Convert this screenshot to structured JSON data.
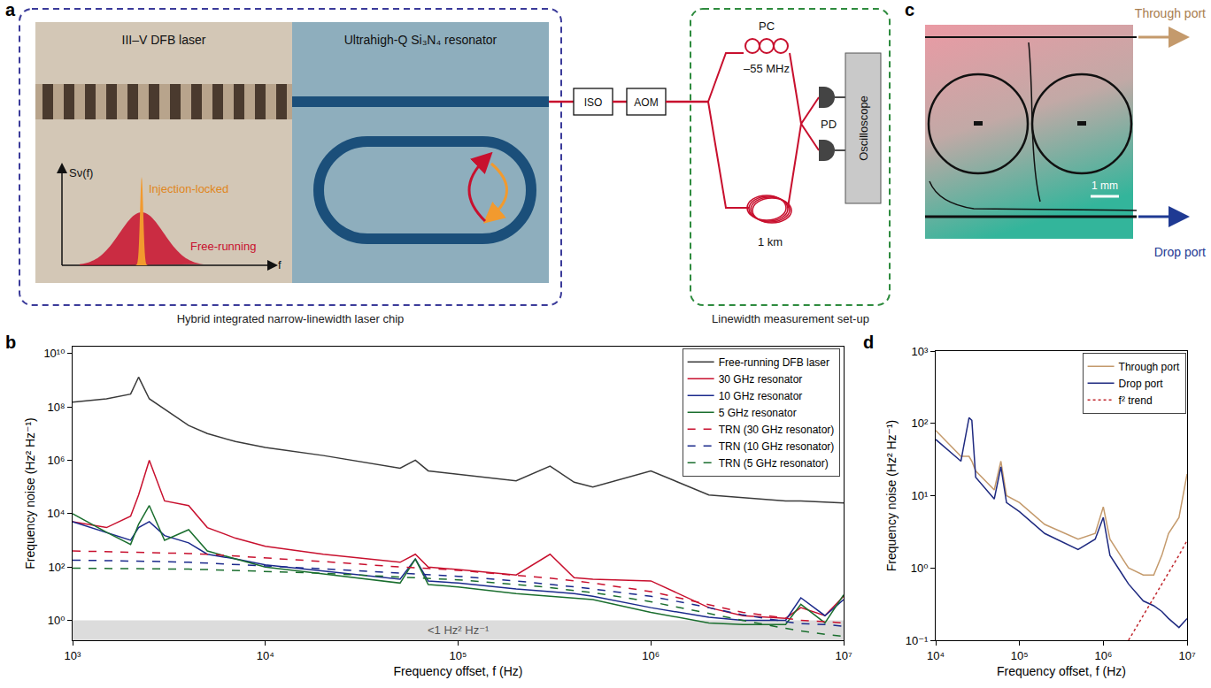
{
  "chart_data": [
    {
      "panel_label": "b",
      "type": "line",
      "x_label": "Frequency offset, f (Hz)",
      "y_label": "Frequency noise (Hz² Hz⁻¹)",
      "log": true,
      "grid": false,
      "legend": "upper right",
      "xlim": [
        1000,
        10000000
      ],
      "ylim": [
        0.18,
        18000000000
      ],
      "xticks": [
        {
          "value": 1000,
          "label": "10³"
        },
        {
          "value": 10000,
          "label": "10⁴"
        },
        {
          "value": 100000,
          "label": "10⁵"
        },
        {
          "value": 1000000,
          "label": "10⁶"
        },
        {
          "value": 10000000,
          "label": "10⁷"
        }
      ],
      "yticks": [
        {
          "value": 1,
          "label": "10⁰"
        },
        {
          "value": 100,
          "label": "10²"
        },
        {
          "value": 10000,
          "label": "10⁴"
        },
        {
          "value": 1000000,
          "label": "10⁶"
        },
        {
          "value": 100000000,
          "label": "10⁸"
        },
        {
          "value": 10000000000,
          "label": "10¹⁰"
        }
      ],
      "shaded_below": 1,
      "annotations": [
        {
          "text": "<1 Hz² Hz⁻¹",
          "x": 100000,
          "y": 0.42
        }
      ],
      "x": [
        1000,
        1500,
        2000,
        2200,
        2500,
        3000,
        4000,
        5000,
        7000,
        10000,
        20000,
        50000,
        60000,
        70000,
        100000,
        200000,
        300000,
        400000,
        500000,
        1000000,
        2000000,
        3000000,
        5000000,
        6000000,
        8000000,
        10000000
      ],
      "series": [
        {
          "name": "Free-running DFB laser",
          "color": "#3a3a3a",
          "line_style": "solid",
          "values": [
            150000000.0,
            200000000.0,
            300000000.0,
            1300000000.0,
            200000000.0,
            80000000.0,
            20000000.0,
            10000000.0,
            5000000.0,
            3000000.0,
            1500000.0,
            500000.0,
            1000000.0,
            400000.0,
            300000.0,
            170000.0,
            600000.0,
            150000.0,
            100000.0,
            400000.0,
            50000.0,
            40000.0,
            30000.0,
            30000.0,
            27000.0,
            25000.0
          ]
        },
        {
          "name": "30 GHz resonator",
          "color": "#c8102e",
          "line_style": "solid",
          "values": [
            5000,
            3000,
            8000,
            50000,
            1000000,
            30000,
            20000,
            3000,
            1200,
            600,
            300,
            150,
            300,
            100,
            80,
            50,
            300,
            40,
            35,
            30,
            3,
            1.5,
            1.2,
            3,
            1.5,
            8
          ]
        },
        {
          "name": "10 GHz resonator",
          "color": "#1b2a8c",
          "line_style": "solid",
          "values": [
            5000,
            2000,
            1000,
            3000,
            5000,
            1500,
            800,
            300,
            200,
            120,
            70,
            35,
            200,
            30,
            25,
            15,
            12,
            10,
            8,
            3,
            1.3,
            1,
            1,
            7,
            1.5,
            6
          ]
        },
        {
          "name": "5 GHz resonator",
          "color": "#1a6e2e",
          "line_style": "solid",
          "values": [
            10000,
            2000,
            700,
            4000,
            20000,
            1000,
            2500,
            400,
            200,
            100,
            55,
            25,
            200,
            22,
            18,
            10,
            8,
            7,
            6,
            2,
            0.8,
            0.7,
            0.7,
            4,
            0.8,
            9
          ]
        },
        {
          "name": "TRN (30 GHz resonator)",
          "color": "#c8102e",
          "line_style": "dash",
          "values": [
            400,
            380,
            360,
            355,
            350,
            340,
            320,
            300,
            260,
            220,
            160,
            100,
            95,
            88,
            75,
            50,
            38,
            30,
            25,
            12,
            4,
            2,
            1.2,
            1.0,
            0.9,
            0.8
          ]
        },
        {
          "name": "TRN (10 GHz resonator)",
          "color": "#1b2a8c",
          "line_style": "dash",
          "values": [
            180,
            175,
            170,
            168,
            165,
            160,
            150,
            140,
            125,
            110,
            85,
            60,
            57,
            53,
            45,
            30,
            23,
            18,
            15,
            8,
            3,
            1.6,
            0.9,
            0.75,
            0.7,
            0.6
          ]
        },
        {
          "name": "TRN (5 GHz resonator)",
          "color": "#1a6e2e",
          "line_style": "dash",
          "values": [
            90,
            89,
            88,
            87,
            86,
            85,
            83,
            80,
            75,
            70,
            58,
            42,
            40,
            37,
            33,
            22,
            17,
            13,
            11,
            5,
            1.8,
            1,
            0.5,
            0.4,
            0.3,
            0.25
          ]
        }
      ]
    },
    {
      "panel_label": "d",
      "type": "line",
      "x_label": "Frequency offset, f (Hz)",
      "y_label": "Frequency noise (Hz² Hz⁻¹)",
      "log": true,
      "grid": false,
      "legend": "upper right",
      "xlim": [
        10000,
        10000000
      ],
      "ylim": [
        0.1,
        1000
      ],
      "xticks": [
        {
          "value": 10000,
          "label": "10⁴"
        },
        {
          "value": 100000,
          "label": "10⁵"
        },
        {
          "value": 1000000,
          "label": "10⁶"
        },
        {
          "value": 10000000,
          "label": "10⁷"
        }
      ],
      "yticks": [
        {
          "value": 0.1,
          "label": "10⁻¹"
        },
        {
          "value": 1,
          "label": "10⁰"
        },
        {
          "value": 10,
          "label": "10¹"
        },
        {
          "value": 100,
          "label": "10²"
        },
        {
          "value": 1000,
          "label": "10³"
        }
      ],
      "x": [
        10000,
        15000,
        20000,
        25000,
        27000,
        30000,
        50000,
        60000,
        70000,
        100000,
        200000,
        500000,
        800000,
        1000000,
        1200000,
        2000000,
        3000000,
        4000000,
        5000000,
        6000000,
        8000000,
        10000000
      ],
      "series": [
        {
          "name": "Through port",
          "color": "#c49a6c",
          "line_style": "solid",
          "values": [
            80,
            50,
            35,
            35,
            30,
            22,
            12,
            30,
            10,
            8,
            4,
            2.5,
            3,
            7,
            2.5,
            1,
            0.8,
            0.8,
            1.5,
            3,
            5,
            20
          ]
        },
        {
          "name": "Drop port",
          "color": "#1f2a80",
          "line_style": "solid",
          "values": [
            60,
            40,
            30,
            120,
            110,
            18,
            9,
            25,
            8,
            6,
            3,
            1.8,
            2.5,
            5,
            1.5,
            0.6,
            0.35,
            0.3,
            0.25,
            0.2,
            0.15,
            0.2
          ]
        },
        {
          "name": "f² trend",
          "color": "#c0272d",
          "line_style": "dot",
          "values": [
            null,
            null,
            null,
            null,
            null,
            null,
            null,
            null,
            null,
            null,
            null,
            null,
            null,
            null,
            null,
            0.1,
            0.22,
            0.4,
            0.6,
            0.85,
            1.5,
            2.4
          ]
        }
      ]
    }
  ],
  "diagram": {
    "a": {
      "panel_label": "a",
      "chip": {
        "label": "Hybrid integrated narrow-linewidth laser chip",
        "laser": "III–V DFB laser",
        "resonator": "Ultrahigh-Q Si₃N₄ resonator",
        "inset": {
          "y_label": "Sν(f)",
          "x_label": "f",
          "narrow": "Injection-locked",
          "broad": "Free-running"
        }
      },
      "isolator": "ISO",
      "modulator": "AOM",
      "setup": {
        "label": "Linewidth measurement set-up",
        "controller": "PC",
        "shift": "–55 MHz",
        "delay": "1 km",
        "detector": "PD",
        "scope": "Oscilloscope"
      }
    },
    "c": {
      "panel_label": "c",
      "through": "Through port",
      "drop": "Drop port",
      "scale": "1 mm"
    }
  }
}
